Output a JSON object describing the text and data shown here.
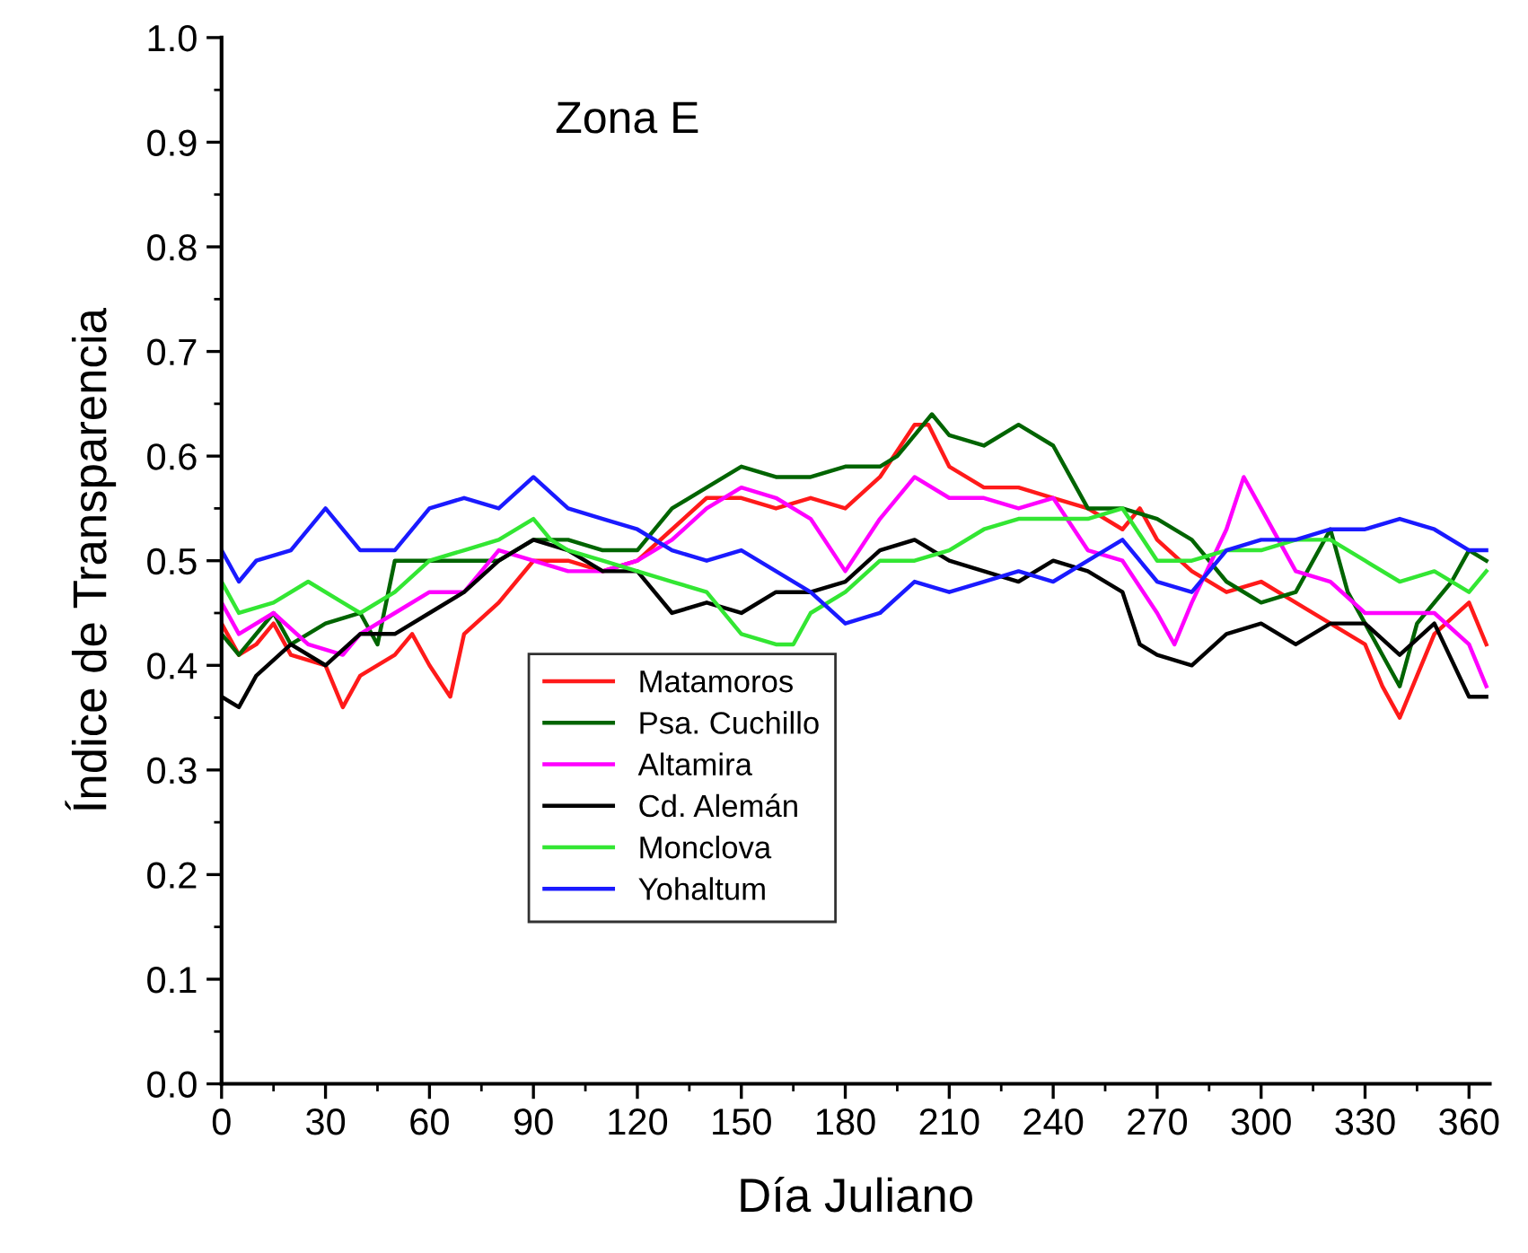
{
  "chart_data": {
    "type": "line",
    "title": "Zona E",
    "xlabel": "Día Juliano",
    "ylabel": "Índice de Transparencia",
    "xlim": [
      0,
      366
    ],
    "xticks": [
      0,
      30,
      60,
      90,
      120,
      150,
      180,
      210,
      240,
      270,
      300,
      330,
      360
    ],
    "ylim": [
      0,
      1
    ],
    "yticks": [
      {
        "value": 0,
        "label": "0.0"
      },
      {
        "value": 0.1,
        "label": "0.1"
      },
      {
        "value": 0.2,
        "label": "0.2"
      },
      {
        "value": 0.3,
        "label": "0.3"
      },
      {
        "value": 0.4,
        "label": "0.4"
      },
      {
        "value": 0.5,
        "label": "0.5"
      },
      {
        "value": 0.6,
        "label": "0.6"
      },
      {
        "value": 0.7,
        "label": "0.7"
      },
      {
        "value": 0.8,
        "label": "0.8"
      },
      {
        "value": 0.9,
        "label": "0.9"
      },
      {
        "value": 1,
        "label": "1.0"
      }
    ],
    "grid": false,
    "legend": "bottom left",
    "marker": "none",
    "line_style": "solid",
    "series": [
      {
        "name": "Matamoros",
        "color": "#ff1a1a",
        "x": [
          0,
          5,
          10,
          15,
          20,
          30,
          35,
          40,
          50,
          55,
          60,
          66,
          70,
          80,
          90,
          100,
          110,
          120,
          130,
          140,
          150,
          160,
          170,
          180,
          190,
          200,
          204,
          210,
          220,
          230,
          240,
          250,
          260,
          265,
          270,
          280,
          290,
          300,
          310,
          320,
          330,
          335,
          340,
          345,
          350,
          360,
          365
        ],
        "values": [
          0.44,
          0.41,
          0.42,
          0.44,
          0.41,
          0.4,
          0.36,
          0.39,
          0.41,
          0.43,
          0.4,
          0.37,
          0.43,
          0.46,
          0.5,
          0.5,
          0.49,
          0.5,
          0.53,
          0.56,
          0.56,
          0.55,
          0.56,
          0.55,
          0.58,
          0.63,
          0.63,
          0.59,
          0.57,
          0.57,
          0.56,
          0.55,
          0.53,
          0.55,
          0.52,
          0.49,
          0.47,
          0.48,
          0.46,
          0.44,
          0.42,
          0.38,
          0.35,
          0.39,
          0.43,
          0.46,
          0.42
        ]
      },
      {
        "name": "Psa. Cuchillo",
        "color": "#006400",
        "x": [
          0,
          5,
          15,
          20,
          30,
          40,
          45,
          50,
          60,
          70,
          80,
          90,
          100,
          110,
          120,
          130,
          140,
          150,
          160,
          170,
          180,
          190,
          195,
          200,
          205,
          210,
          220,
          230,
          240,
          250,
          260,
          270,
          280,
          290,
          300,
          310,
          320,
          325,
          330,
          340,
          345,
          355,
          360,
          365
        ],
        "values": [
          0.43,
          0.41,
          0.45,
          0.42,
          0.44,
          0.45,
          0.42,
          0.5,
          0.5,
          0.5,
          0.5,
          0.52,
          0.52,
          0.51,
          0.51,
          0.55,
          0.57,
          0.59,
          0.58,
          0.58,
          0.59,
          0.59,
          0.6,
          0.62,
          0.64,
          0.62,
          0.61,
          0.63,
          0.61,
          0.55,
          0.55,
          0.54,
          0.52,
          0.48,
          0.46,
          0.47,
          0.53,
          0.47,
          0.44,
          0.38,
          0.44,
          0.48,
          0.51,
          0.5
        ]
      },
      {
        "name": "Altamira",
        "color": "#ff00ff",
        "x": [
          0,
          5,
          15,
          25,
          35,
          40,
          50,
          60,
          70,
          80,
          90,
          100,
          110,
          120,
          130,
          140,
          150,
          160,
          170,
          180,
          190,
          200,
          210,
          220,
          230,
          240,
          250,
          260,
          270,
          275,
          280,
          290,
          295,
          300,
          310,
          320,
          330,
          340,
          350,
          360,
          365
        ],
        "values": [
          0.46,
          0.43,
          0.45,
          0.42,
          0.41,
          0.43,
          0.45,
          0.47,
          0.47,
          0.51,
          0.5,
          0.49,
          0.49,
          0.5,
          0.52,
          0.55,
          0.57,
          0.56,
          0.54,
          0.49,
          0.54,
          0.58,
          0.56,
          0.56,
          0.55,
          0.56,
          0.51,
          0.5,
          0.45,
          0.42,
          0.46,
          0.53,
          0.58,
          0.55,
          0.49,
          0.48,
          0.45,
          0.45,
          0.45,
          0.42,
          0.38
        ]
      },
      {
        "name": "Cd. Alemán",
        "color": "#000000",
        "x": [
          0,
          5,
          10,
          20,
          30,
          40,
          50,
          60,
          70,
          80,
          90,
          100,
          110,
          120,
          130,
          140,
          150,
          160,
          170,
          180,
          190,
          200,
          210,
          220,
          230,
          240,
          250,
          260,
          265,
          270,
          280,
          290,
          300,
          310,
          320,
          330,
          340,
          350,
          360,
          365
        ],
        "values": [
          0.37,
          0.36,
          0.39,
          0.42,
          0.4,
          0.43,
          0.43,
          0.45,
          0.47,
          0.5,
          0.52,
          0.51,
          0.49,
          0.49,
          0.45,
          0.46,
          0.45,
          0.47,
          0.47,
          0.48,
          0.51,
          0.52,
          0.5,
          0.49,
          0.48,
          0.5,
          0.49,
          0.47,
          0.42,
          0.41,
          0.4,
          0.43,
          0.44,
          0.42,
          0.44,
          0.44,
          0.41,
          0.44,
          0.37,
          0.37
        ]
      },
      {
        "name": "Monclova",
        "color": "#33e633",
        "x": [
          0,
          5,
          15,
          25,
          35,
          40,
          50,
          60,
          70,
          80,
          90,
          95,
          100,
          110,
          120,
          130,
          140,
          150,
          160,
          165,
          170,
          180,
          190,
          200,
          210,
          220,
          230,
          240,
          250,
          260,
          270,
          280,
          290,
          300,
          310,
          320,
          330,
          340,
          350,
          360,
          365
        ],
        "values": [
          0.48,
          0.45,
          0.46,
          0.48,
          0.46,
          0.45,
          0.47,
          0.5,
          0.51,
          0.52,
          0.54,
          0.52,
          0.51,
          0.5,
          0.49,
          0.48,
          0.47,
          0.43,
          0.42,
          0.42,
          0.45,
          0.47,
          0.5,
          0.5,
          0.51,
          0.53,
          0.54,
          0.54,
          0.54,
          0.55,
          0.5,
          0.5,
          0.51,
          0.51,
          0.52,
          0.52,
          0.5,
          0.48,
          0.49,
          0.47,
          0.49
        ]
      },
      {
        "name": "Yohaltum",
        "color": "#1a1aff",
        "x": [
          0,
          5,
          10,
          20,
          30,
          40,
          50,
          60,
          70,
          80,
          90,
          100,
          110,
          120,
          130,
          140,
          150,
          160,
          170,
          180,
          190,
          200,
          210,
          220,
          230,
          240,
          250,
          260,
          270,
          280,
          290,
          300,
          310,
          320,
          330,
          340,
          350,
          360,
          365
        ],
        "values": [
          0.51,
          0.48,
          0.5,
          0.51,
          0.55,
          0.51,
          0.51,
          0.55,
          0.56,
          0.55,
          0.58,
          0.55,
          0.54,
          0.53,
          0.51,
          0.5,
          0.51,
          0.49,
          0.47,
          0.44,
          0.45,
          0.48,
          0.47,
          0.48,
          0.49,
          0.48,
          0.5,
          0.52,
          0.48,
          0.47,
          0.51,
          0.52,
          0.52,
          0.53,
          0.53,
          0.54,
          0.53,
          0.51,
          0.51
        ]
      }
    ]
  }
}
